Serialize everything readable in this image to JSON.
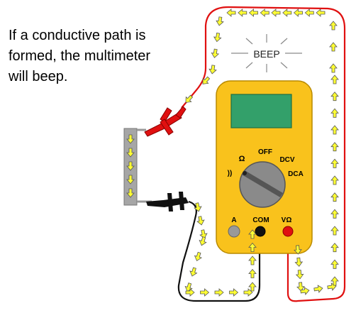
{
  "caption": {
    "lines": [
      "If a conductive path is",
      "formed, the multimeter",
      "will beep."
    ]
  },
  "beep_label": "BEEP",
  "multimeter": {
    "dial_labels": {
      "off": "OFF",
      "ohm": "Ω",
      "dcv": "DCV",
      "dca": "DCA",
      "continuity": "))"
    },
    "jack_labels": {
      "a": "A",
      "com": "COM",
      "vohm": "VΩ"
    }
  },
  "colors": {
    "body": "#f9c21c",
    "body_outline": "#b98a00",
    "display": "#33a06a",
    "dial": "#8a8a8a",
    "red_lead": "#e01010",
    "black_lead": "#111111",
    "arrow": "#ffff33",
    "conductor": "#a6a6a6"
  },
  "icons": [
    "beep-rays-icon",
    "current-flow-arrow-icon",
    "test-probe-icon"
  ]
}
